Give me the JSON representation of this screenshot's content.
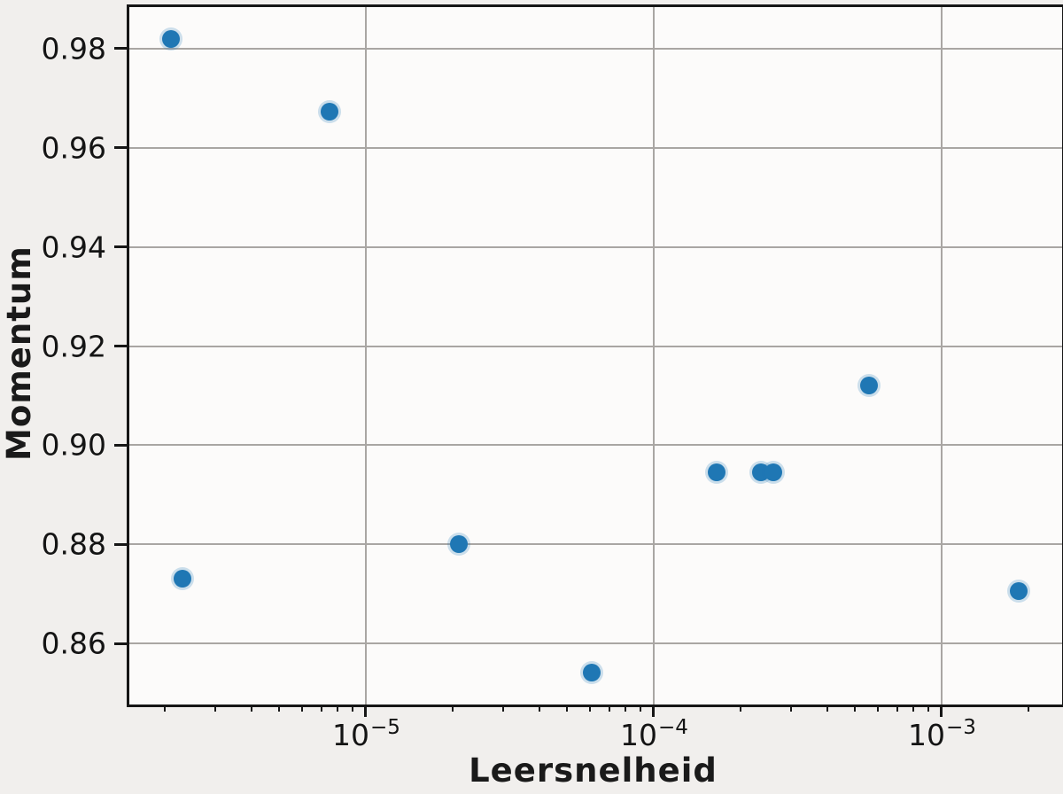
{
  "chart_data": {
    "type": "scatter",
    "title": "",
    "xlabel": "Leersnelheid",
    "ylabel": "Momentum",
    "xscale": "log",
    "grid": true,
    "legend": "none",
    "xlim_log10": [
      -5.8215,
      -2.5815
    ],
    "ylim": [
      0.8477,
      0.9884
    ],
    "points": [
      {
        "x": 2.1e-06,
        "y": 0.982
      },
      {
        "x": 7.5e-06,
        "y": 0.9673
      },
      {
        "x": 2.3e-06,
        "y": 0.873
      },
      {
        "x": 2.1e-05,
        "y": 0.88
      },
      {
        "x": 6.1e-05,
        "y": 0.8542
      },
      {
        "x": 0.000165,
        "y": 0.8945
      },
      {
        "x": 0.000235,
        "y": 0.8945
      },
      {
        "x": 0.00026,
        "y": 0.8945
      },
      {
        "x": 0.00056,
        "y": 0.912
      },
      {
        "x": 0.00185,
        "y": 0.8705
      }
    ],
    "yticks": [
      {
        "value": 0.98,
        "label": "0.98"
      },
      {
        "value": 0.96,
        "label": "0.96"
      },
      {
        "value": 0.94,
        "label": "0.94"
      },
      {
        "value": 0.92,
        "label": "0.92"
      },
      {
        "value": 0.9,
        "label": "0.90"
      },
      {
        "value": 0.88,
        "label": "0.88"
      },
      {
        "value": 0.86,
        "label": "0.86"
      }
    ],
    "xticks": [
      {
        "exponent": -5,
        "base": "10",
        "sup": "−5"
      },
      {
        "exponent": -4,
        "base": "10",
        "sup": "−4"
      },
      {
        "exponent": -3,
        "base": "10",
        "sup": "−3"
      }
    ],
    "minor_tick_multiples": [
      2,
      3,
      4,
      5,
      6,
      7,
      8,
      9
    ],
    "minor_tick_decades": [
      -6,
      -5,
      -4,
      -3
    ]
  },
  "colors": {
    "marker": "#1f77b4",
    "grid": "#a9a6a3",
    "spine": "#161616",
    "text": "#141414",
    "page_bg": "#f1efed",
    "plot_bg": "#fcfbfa"
  }
}
